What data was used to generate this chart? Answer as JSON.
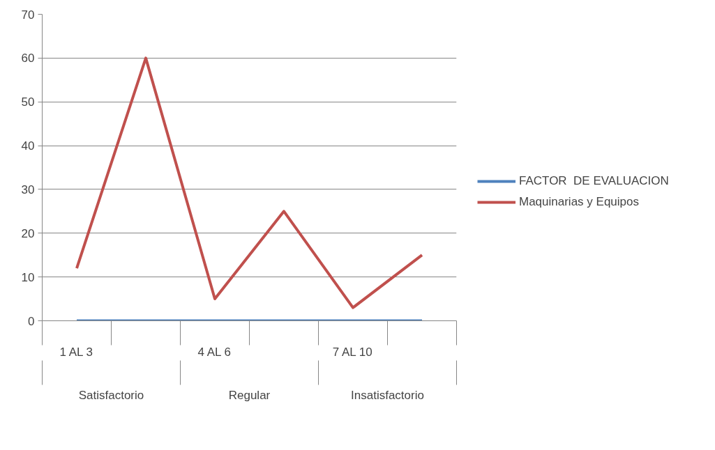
{
  "chart_data": {
    "type": "line",
    "categories": [
      "1 AL 3",
      null,
      "4 AL 6",
      null,
      "7 AL 10",
      null
    ],
    "series": [
      {
        "name": "FACTOR  DE EVALUACION",
        "color": "#4f81bd",
        "values": [
          0,
          0,
          0,
          0,
          0,
          0
        ]
      },
      {
        "name": "Maquinarias y Equipos",
        "color": "#c0504d",
        "values": [
          12,
          60,
          5,
          25,
          3,
          15
        ]
      }
    ],
    "annotations": [
      "Satisfactorio",
      "Regular",
      "Insatisfactorio"
    ],
    "ylim": [
      0,
      70
    ],
    "yticks": [
      0,
      10,
      20,
      30,
      40,
      50,
      60,
      70
    ],
    "grid": "y",
    "legend": "right",
    "marker": "none",
    "line_style": "solid"
  }
}
